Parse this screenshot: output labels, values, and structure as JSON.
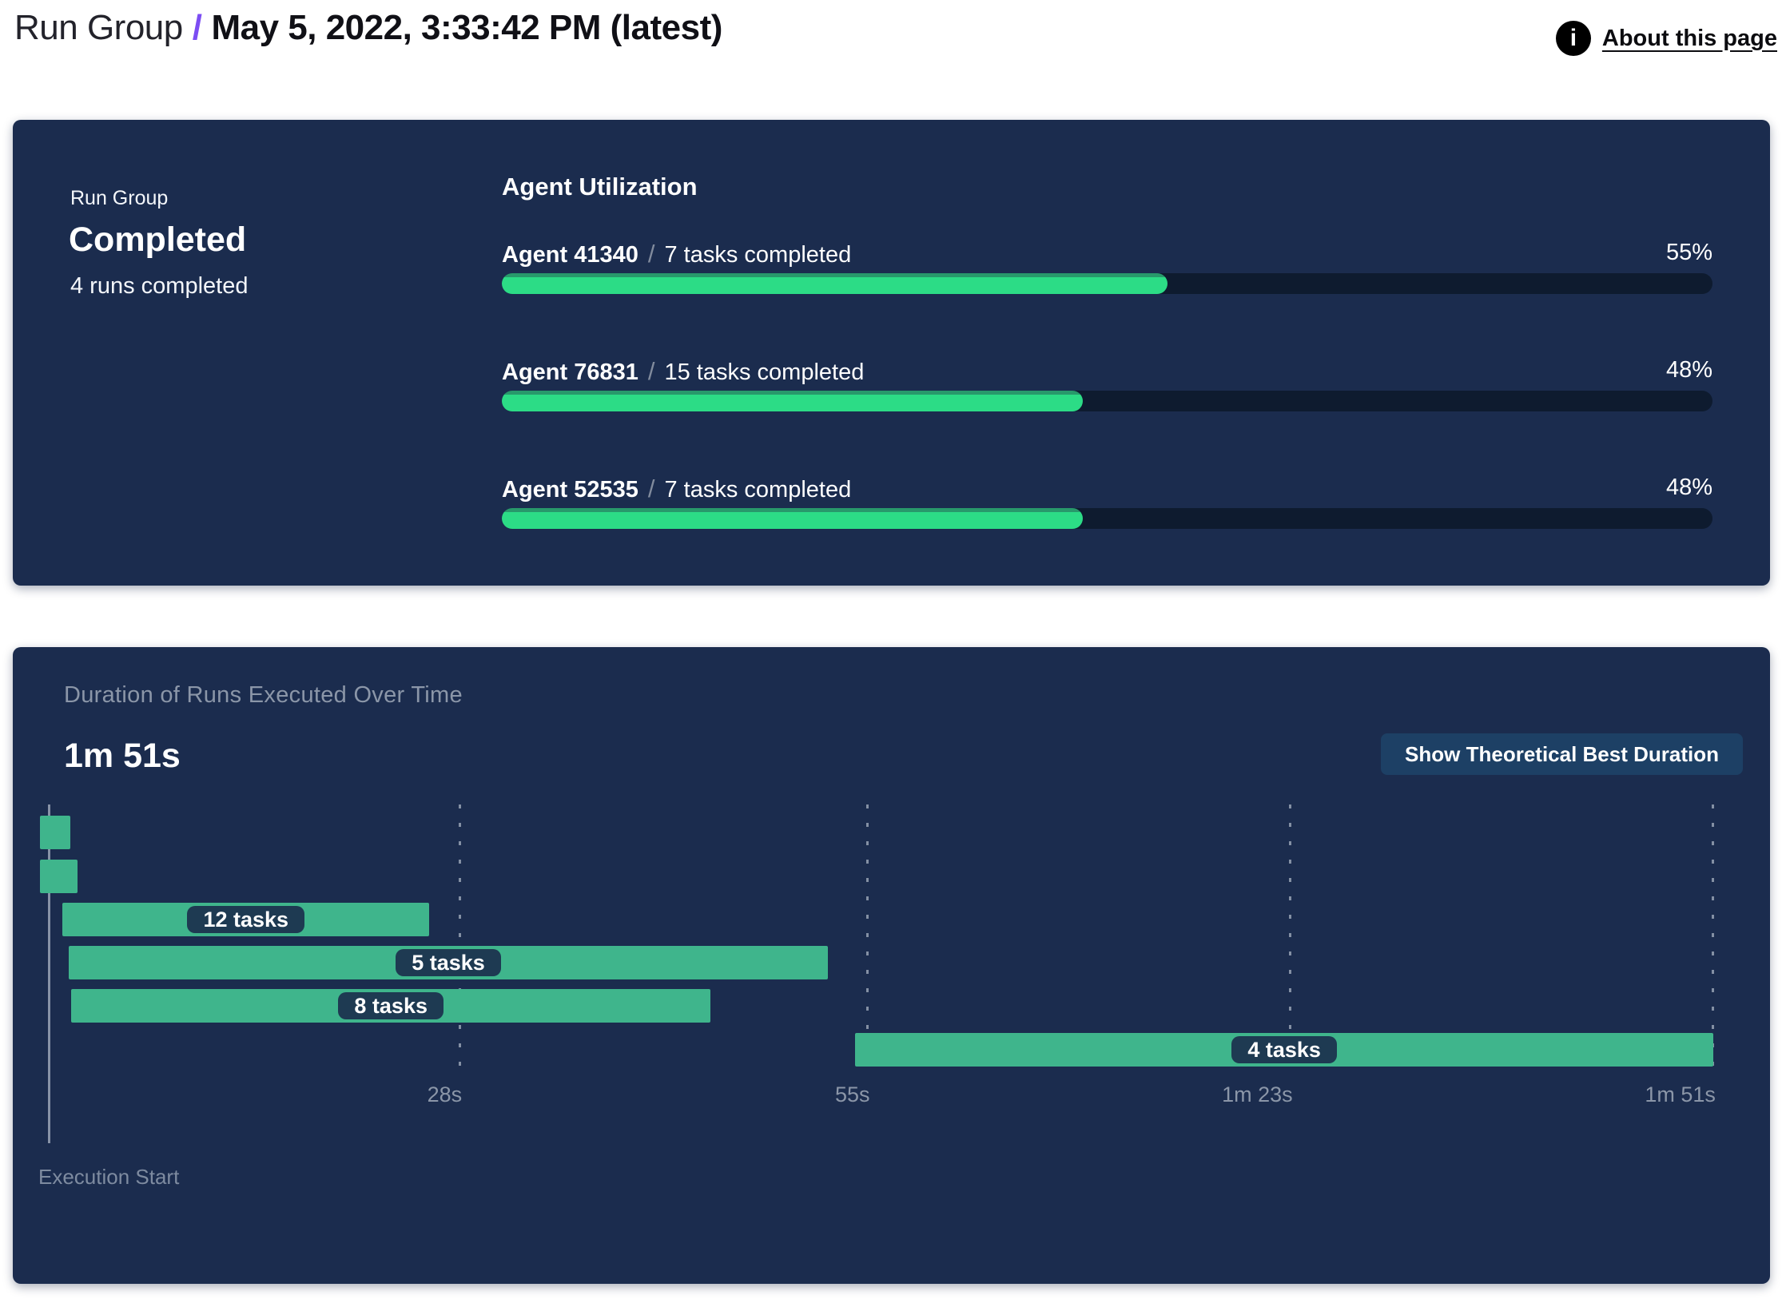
{
  "header": {
    "breadcrumb_root": "Run Group",
    "separator": "/",
    "title": "May 5, 2022, 3:33:42 PM (latest)",
    "about_label": "About this page",
    "info_glyph": "i"
  },
  "colors": {
    "panel_navy": "#1B2C4E",
    "accent_purple": "#7C4DF3",
    "progress_green": "#2CDC86",
    "progress_green_dark": "#28996B",
    "progress_track": "#0E1B2F",
    "gantt_green": "#3FB58C",
    "pill_navy": "#1E3A52",
    "button_navy": "#1D4065",
    "muted_text": "#8B96A8"
  },
  "summary_panel": {
    "label": "Run Group",
    "status": "Completed",
    "runs_completed": "4 runs completed",
    "utilization_title": "Agent Utilization",
    "agents": [
      {
        "name": "Agent 41340",
        "separator": "/",
        "tasks": "7 tasks completed",
        "percent": 55,
        "percent_label": "55%"
      },
      {
        "name": "Agent 76831",
        "separator": "/",
        "tasks": "15 tasks completed",
        "percent": 48,
        "percent_label": "48%"
      },
      {
        "name": "Agent 52535",
        "separator": "/",
        "tasks": "7 tasks completed",
        "percent": 48,
        "percent_label": "48%"
      }
    ]
  },
  "duration_panel": {
    "button_label": "Show Theoretical Best Duration"
  },
  "chart_data": {
    "type": "gantt",
    "title": "Duration of Runs Executed Over Time",
    "total_duration": "1m 51s",
    "x_axis": {
      "unit": "seconds",
      "origin_label": "Execution Start",
      "range_seconds": [
        0,
        111
      ],
      "grid": "dashed-vertical",
      "ticks": [
        {
          "label": "28s",
          "seconds": 28
        },
        {
          "label": "55s",
          "seconds": 55
        },
        {
          "label": "1m 23s",
          "seconds": 83
        },
        {
          "label": "1m 51s",
          "seconds": 111
        }
      ]
    },
    "runs": [
      {
        "start_s": 0.2,
        "end_s": 2.2,
        "tasks_label": ""
      },
      {
        "start_s": 0.2,
        "end_s": 2.7,
        "tasks_label": ""
      },
      {
        "start_s": 1.7,
        "end_s": 26.0,
        "tasks_label": "12 tasks"
      },
      {
        "start_s": 2.1,
        "end_s": 52.4,
        "tasks_label": "5 tasks"
      },
      {
        "start_s": 2.3,
        "end_s": 44.6,
        "tasks_label": "8 tasks"
      },
      {
        "start_s": 54.2,
        "end_s": 111.0,
        "tasks_label": "4 tasks"
      }
    ]
  }
}
